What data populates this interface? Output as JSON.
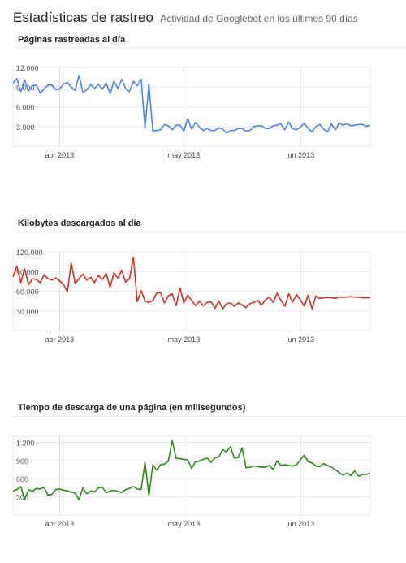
{
  "header": {
    "title": "Estadísticas de rastreo",
    "subtitle": "Actividad de Googlebot en los últimos 90 días"
  },
  "sections": [
    {
      "title": "Páginas rastreadas al día"
    },
    {
      "title": "Kilobytes descargados al día"
    },
    {
      "title": "Tiempo de descarga de una página (en milisegundos)"
    }
  ],
  "chart_data": [
    {
      "type": "line",
      "title": "Páginas rastreadas al día",
      "color": "#4a86e8",
      "ylim": [
        0,
        12000
      ],
      "yticks": [
        3000,
        6000,
        9000,
        12000
      ],
      "ytick_labels": [
        "3.000",
        "6.000",
        "9.000",
        "12.000"
      ],
      "xticks": [
        "abr 2013",
        "may 2013",
        "jun 2013"
      ],
      "grid": true,
      "values": [
        9600,
        10300,
        8300,
        10100,
        8400,
        9200,
        9300,
        8100,
        8700,
        9300,
        9300,
        8600,
        8700,
        9500,
        9700,
        9000,
        8500,
        10800,
        8200,
        8600,
        9400,
        8800,
        9400,
        8700,
        9600,
        8000,
        9900,
        8800,
        10200,
        8800,
        8300,
        9900,
        9200,
        10200,
        2800,
        9400,
        2300,
        2400,
        2500,
        3300,
        3100,
        2500,
        3200,
        3200,
        2300,
        4200,
        2600,
        3600,
        2900,
        2400,
        2700,
        2400,
        2400,
        2800,
        2600,
        2000,
        2400,
        2400,
        2700,
        2700,
        2300,
        2400,
        3000,
        3100,
        3100,
        2700,
        2700,
        3100,
        3200,
        3400,
        2500,
        3700,
        2700,
        2500,
        2900,
        3500,
        2700,
        2200,
        3000,
        3300,
        2600,
        2200,
        3400,
        2500,
        3500,
        3200,
        3400,
        3100,
        3200,
        3300,
        3300,
        3000,
        3200
      ],
      "xtick_index": [
        12,
        44,
        74
      ]
    },
    {
      "type": "line",
      "title": "Kilobytes descargados al día",
      "color": "#cc3322",
      "ylim": [
        0,
        120000
      ],
      "yticks": [
        30000,
        60000,
        90000,
        120000
      ],
      "ytick_labels": [
        "30.000",
        "60.000",
        "90.000",
        "120.000"
      ],
      "xticks": [
        "abr 2013",
        "may 2013",
        "jun 2013"
      ],
      "grid": true,
      "values": [
        82000,
        98000,
        73000,
        94000,
        70000,
        79000,
        78000,
        73000,
        85000,
        79000,
        77000,
        80000,
        76000,
        70000,
        59000,
        103000,
        72000,
        79000,
        86000,
        77000,
        81000,
        73000,
        84000,
        78000,
        87000,
        66000,
        88000,
        80000,
        92000,
        74000,
        79000,
        112000,
        44000,
        61000,
        45000,
        43000,
        46000,
        57000,
        58000,
        42000,
        53000,
        56000,
        38000,
        65000,
        42000,
        54000,
        46000,
        38000,
        45000,
        38000,
        43000,
        44000,
        34000,
        45000,
        33000,
        41000,
        42000,
        37000,
        42000,
        39000,
        35000,
        41000,
        43000,
        46000,
        39000,
        47000,
        51000,
        43000,
        57000,
        46000,
        37000,
        56000,
        43000,
        55000,
        47000,
        37000,
        54000,
        33000,
        53000,
        49000,
        50000,
        51000,
        50000,
        49000,
        51000,
        51000,
        51000,
        52000,
        51000,
        51000,
        50000,
        50000,
        50000
      ],
      "xtick_index": [
        12,
        44,
        74
      ]
    },
    {
      "type": "line",
      "title": "Tiempo de descarga de una página (en milisegundos)",
      "color": "#2e8b1a",
      "ylim": [
        0,
        1300
      ],
      "yticks": [
        300,
        600,
        900,
        1200
      ],
      "ytick_labels": [
        "300",
        "600",
        "900",
        "1.200"
      ],
      "xticks": [
        "abr 2013",
        "may 2013",
        "jun 2013"
      ],
      "grid": true,
      "values": [
        400,
        420,
        470,
        250,
        420,
        390,
        440,
        430,
        460,
        330,
        340,
        420,
        430,
        410,
        400,
        380,
        360,
        250,
        450,
        350,
        400,
        380,
        450,
        460,
        370,
        400,
        410,
        390,
        370,
        420,
        440,
        470,
        430,
        420,
        870,
        320,
        830,
        740,
        830,
        840,
        890,
        1230,
        940,
        930,
        920,
        910,
        770,
        880,
        890,
        920,
        940,
        870,
        940,
        960,
        1080,
        1040,
        1130,
        940,
        950,
        1110,
        780,
        790,
        810,
        800,
        790,
        790,
        820,
        750,
        890,
        820,
        830,
        820,
        810,
        830,
        910,
        990,
        880,
        860,
        810,
        800,
        850,
        820,
        790,
        750,
        700,
        660,
        690,
        650,
        730,
        640,
        670,
        670,
        690
      ],
      "xtick_index": [
        12,
        44,
        74
      ]
    }
  ]
}
